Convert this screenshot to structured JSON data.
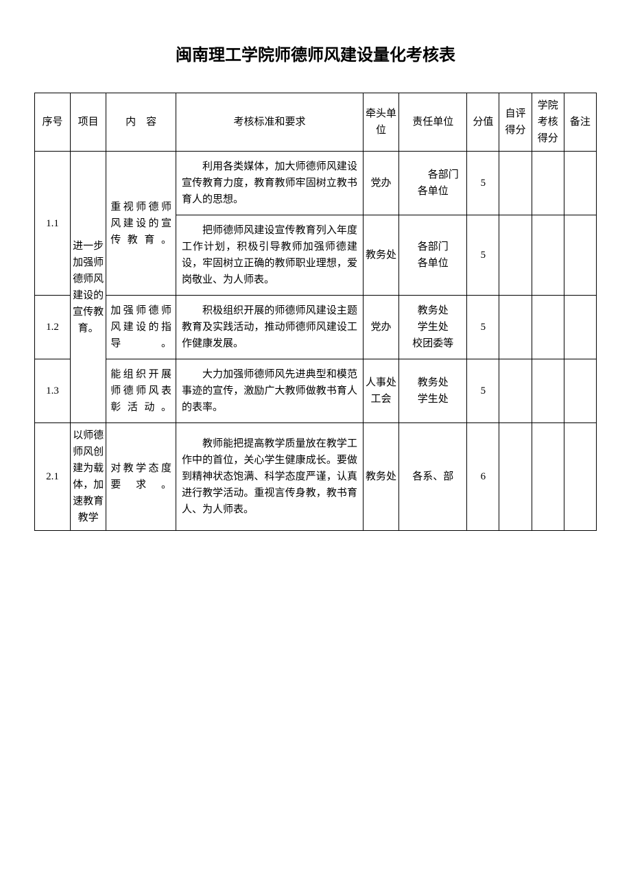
{
  "title": "闽南理工学院师德师风建设量化考核表",
  "headers": {
    "seq": "序号",
    "project": "项目",
    "content": "内　容",
    "standard": "考核标准和要求",
    "lead": "牵头单位",
    "resp": "责任单位",
    "score": "分值",
    "self": "自评得分",
    "school": "学院考核得分",
    "note": "备注"
  },
  "project1": "进一步加强师德师风建设的宣传教育。",
  "project2": "以师德师风创建为载体，加速教育教学",
  "rows": [
    {
      "seq": "1.1",
      "content": "重视师德师风建设的宣传教育。",
      "standard": "利用各类媒体，加大师德师风建设宣传教育力度，教育教师牢固树立教书育人的思想。",
      "lead": "党办",
      "resp": "　　各部门\n各单位",
      "score": "5"
    },
    {
      "seq": "",
      "content": "",
      "standard": "把师德师风建设宣传教育列入年度工作计划，积极引导教师加强师德建设，牢固树立正确的教师职业理想，爱岗敬业、为人师表。",
      "lead": "教务处",
      "resp": "各部门\n各单位",
      "score": "5"
    },
    {
      "seq": "1.2",
      "content": "加强师德师风建设的指导。",
      "standard": "积极组织开展的师德师风建设主题教育及实践活动，推动师德师风建设工作健康发展。",
      "lead": "党办",
      "resp": "教务处\n学生处\n校团委等",
      "score": "5"
    },
    {
      "seq": "1.3",
      "content": "能组织开展师德师风表彰活动。",
      "standard": "大力加强师德师风先进典型和模范事迹的宣传，激励广大教师做教书育人的表率。",
      "lead": "人事处工会",
      "resp": "教务处\n学生处",
      "score": "5"
    },
    {
      "seq": "2.1",
      "content": "对教学态度要求。",
      "standard": "教师能把提高教学质量放在教学工作中的首位，关心学生健康成长。要做到精神状态饱满、科学态度严谨，认真进行教学活动。重视言传身教，教书育人、为人师表。",
      "lead": "教务处",
      "resp": "各系、部",
      "score": "6"
    }
  ]
}
